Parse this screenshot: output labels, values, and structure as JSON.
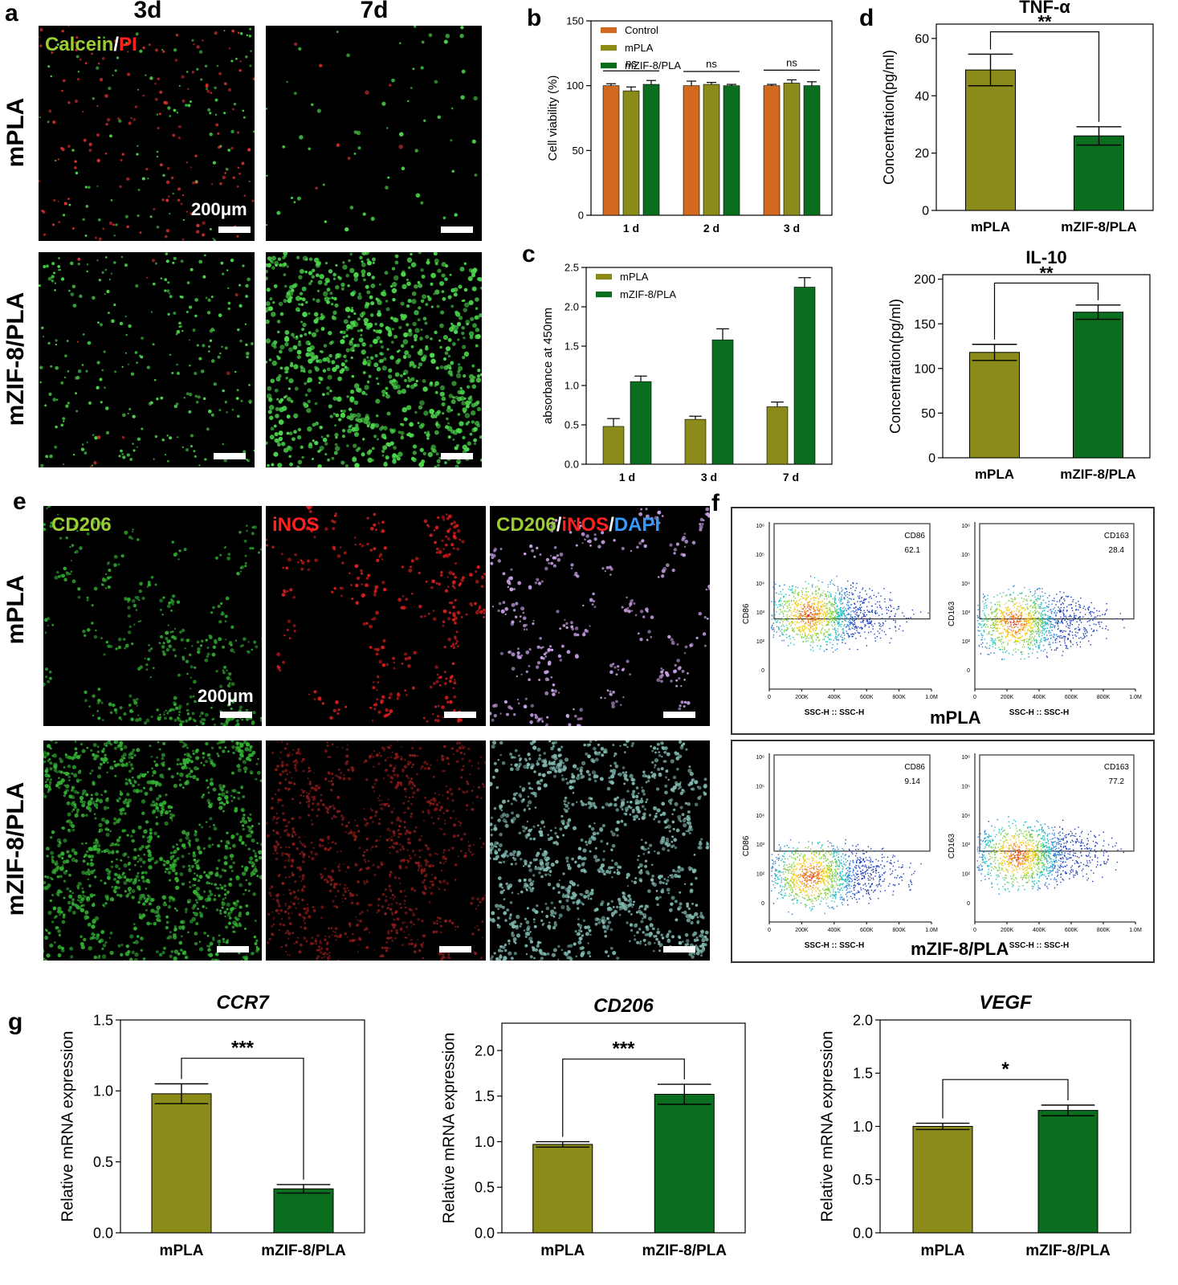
{
  "panel_letters": {
    "a": "a",
    "b": "b",
    "c": "c",
    "d": "d",
    "e": "e",
    "f": "f",
    "g": "g"
  },
  "panel_a": {
    "columns": [
      "3d",
      "7d"
    ],
    "rows": [
      "mPLA",
      "mZIF-8/PLA"
    ],
    "stain": {
      "part1": "Calcein",
      "sep": "/",
      "part2": "PI",
      "color1": "#9acd32",
      "color2": "#ff2020"
    },
    "scale_label": "200μm"
  },
  "panel_e": {
    "rows": [
      "mPLA",
      "mZIF-8/PLA"
    ],
    "stains": {
      "cd206": "CD206",
      "inos": "iNOS",
      "dapi": "DAPI",
      "sep": "/",
      "cd206_color": "#9acd32",
      "inos_color": "#ff2020",
      "dapi_color": "#3399ff"
    },
    "scale_label": "200μm"
  },
  "panel_f": {
    "groups": [
      {
        "title": "mPLA",
        "plots": [
          {
            "marker": "CD86",
            "value": "62.1"
          },
          {
            "marker": "CD163",
            "value": "28.4"
          }
        ]
      },
      {
        "title": "mZIF-8/PLA",
        "plots": [
          {
            "marker": "CD86",
            "value": "9.14"
          },
          {
            "marker": "CD163",
            "value": "77.2"
          }
        ]
      }
    ],
    "x_axis_label": "SSC-H :: SSC-H",
    "x_ticks": [
      "0",
      "200K",
      "400K",
      "600K",
      "800K",
      "1.0M"
    ],
    "y_ticks": [
      "0",
      "10²",
      "10³",
      "10⁴",
      "10⁵",
      "10⁶"
    ]
  },
  "chart_data": [
    {
      "id": "b",
      "type": "bar",
      "ylabel": "Cell viability (%)",
      "ylim": [
        0,
        150
      ],
      "yticks": [
        0,
        50,
        100,
        150
      ],
      "categories": [
        "1 d",
        "2 d",
        "3 d"
      ],
      "series": [
        {
          "name": "Control",
          "color": "#d2691e",
          "values": [
            100,
            100,
            100
          ],
          "errors": [
            1.5,
            3.5,
            1
          ]
        },
        {
          "name": "mPLA",
          "color": "#8b8b1a",
          "values": [
            96,
            101,
            102
          ],
          "errors": [
            3,
            1.5,
            2.5
          ]
        },
        {
          "name": "mZIF-8/PLA",
          "color": "#0a6e1e",
          "values": [
            101,
            100,
            100
          ],
          "errors": [
            3,
            1,
            3
          ]
        }
      ],
      "annotations": [
        {
          "between": [
            0,
            0,
            0,
            2
          ],
          "text": "ns"
        },
        {
          "between": [
            1,
            0,
            1,
            2
          ],
          "text": "ns"
        },
        {
          "between": [
            2,
            0,
            2,
            2
          ],
          "text": "ns"
        }
      ]
    },
    {
      "id": "c",
      "type": "bar",
      "ylabel": "absorbance at 450nm",
      "ylim": [
        0,
        2.5
      ],
      "yticks": [
        "0.0",
        "0.5",
        "1.0",
        "1.5",
        "2.0",
        "2.5"
      ],
      "categories": [
        "1 d",
        "3 d",
        "7 d"
      ],
      "series": [
        {
          "name": "mPLA",
          "color": "#8b8b1a",
          "values": [
            0.48,
            0.57,
            0.73
          ],
          "errors": [
            0.1,
            0.04,
            0.06
          ]
        },
        {
          "name": "mZIF-8/PLA",
          "color": "#0a6e1e",
          "values": [
            1.05,
            1.58,
            2.25
          ],
          "errors": [
            0.07,
            0.14,
            0.12
          ]
        }
      ]
    },
    {
      "id": "d1",
      "type": "bar",
      "title": "TNF-α",
      "ylabel": "Concentration(pg/ml)",
      "ylim": [
        0,
        65
      ],
      "yticks": [
        0,
        20,
        40,
        60
      ],
      "categories": [
        "mPLA",
        "mZIF-8/PLA"
      ],
      "colors": [
        "#8b8b1a",
        "#0a6e1e"
      ],
      "values": [
        49,
        26
      ],
      "errors": [
        5.5,
        3.2
      ],
      "significance": "**"
    },
    {
      "id": "d2",
      "type": "bar",
      "title": "IL-10",
      "ylabel": "Concentration(pg/ml)",
      "ylim": [
        0,
        205
      ],
      "yticks": [
        0,
        50,
        100,
        150,
        200
      ],
      "categories": [
        "mPLA",
        "mZIF-8/PLA"
      ],
      "colors": [
        "#8b8b1a",
        "#0a6e1e"
      ],
      "values": [
        118,
        163
      ],
      "errors": [
        9,
        8
      ],
      "significance": "**"
    },
    {
      "id": "g1",
      "type": "bar",
      "title": "CCR7",
      "ylabel": "Relative mRNA expression",
      "ylim": [
        0,
        1.5
      ],
      "yticks": [
        "0.0",
        "0.5",
        "1.0",
        "1.5"
      ],
      "categories": [
        "mPLA",
        "mZIF-8/PLA"
      ],
      "colors": [
        "#8b8b1a",
        "#0a6e1e"
      ],
      "values": [
        0.98,
        0.31
      ],
      "errors": [
        0.07,
        0.03
      ],
      "significance": "***"
    },
    {
      "id": "g2",
      "type": "bar",
      "title": "CD206",
      "ylabel": "Relative mRNA expression",
      "ylim": [
        0,
        2.3
      ],
      "yticks": [
        "0.0",
        "0.5",
        "1.0",
        "1.5",
        "2.0"
      ],
      "categories": [
        "mPLA",
        "mZIF-8/PLA"
      ],
      "colors": [
        "#8b8b1a",
        "#0a6e1e"
      ],
      "values": [
        0.97,
        1.52
      ],
      "errors": [
        0.03,
        0.11
      ],
      "significance": "***"
    },
    {
      "id": "g3",
      "type": "bar",
      "title": "VEGF",
      "ylabel": "Relative mRNA expression",
      "ylim": [
        0,
        2.0
      ],
      "yticks": [
        "0.0",
        "0.5",
        "1.0",
        "1.5",
        "2.0"
      ],
      "categories": [
        "mPLA",
        "mZIF-8/PLA"
      ],
      "colors": [
        "#8b8b1a",
        "#0a6e1e"
      ],
      "values": [
        1.0,
        1.15
      ],
      "errors": [
        0.03,
        0.05
      ],
      "significance": "*"
    }
  ]
}
